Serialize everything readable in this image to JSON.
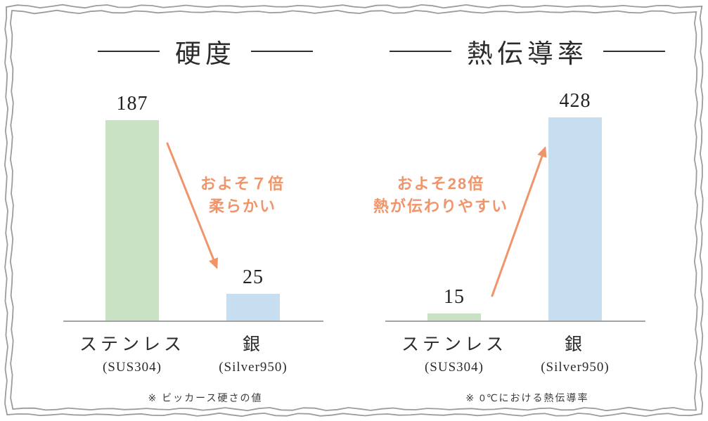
{
  "page": {
    "background": "#ffffff",
    "border_color": "#9c9c9c"
  },
  "colors": {
    "bar_green": "#c9e2c4",
    "bar_blue": "#c7def1",
    "orange": "#f0946a",
    "text": "#2b2b2b",
    "baseline": "#a3a3a3"
  },
  "chart_data": [
    {
      "type": "bar",
      "title": "硬度",
      "categories": [
        "ステンレス",
        "銀"
      ],
      "category_sublabels": [
        "(SUS304)",
        "(Silver950)"
      ],
      "values": [
        187,
        25
      ],
      "value_labels": [
        "187",
        "25"
      ],
      "bar_colors": [
        "#c9e2c4",
        "#c7def1"
      ],
      "ylim": [
        0,
        190
      ],
      "grid": false,
      "legend": false,
      "annotation": {
        "lines": [
          "およそ７倍",
          "柔らかい"
        ],
        "color": "#f0946a",
        "arrow_direction": "down-right"
      },
      "footnote": "※ ビッカース硬さの値"
    },
    {
      "type": "bar",
      "title": "熱伝導率",
      "categories": [
        "ステンレス",
        "銀"
      ],
      "category_sublabels": [
        "(SUS304)",
        "(Silver950)"
      ],
      "values": [
        15,
        428
      ],
      "value_labels": [
        "15",
        "428"
      ],
      "bar_colors": [
        "#c9e2c4",
        "#c7def1"
      ],
      "ylim": [
        0,
        430
      ],
      "grid": false,
      "legend": false,
      "annotation": {
        "lines": [
          "およそ28倍",
          "熱が伝わりやすい"
        ],
        "color": "#f0946a",
        "arrow_direction": "up-right"
      },
      "footnote": "※ 0℃における熱伝導率"
    }
  ]
}
